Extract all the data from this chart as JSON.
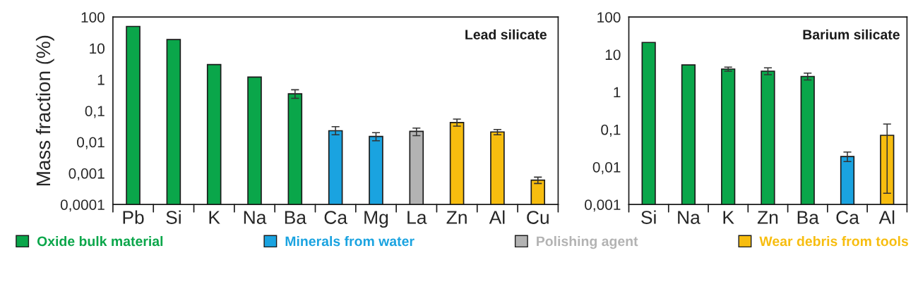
{
  "chart_data": [
    {
      "type": "bar",
      "title": "Lead silicate",
      "ylabel": "Mass fraction (%)",
      "log": "y",
      "grid": false,
      "legend": "bottom",
      "categories": [
        "Pb",
        "Si",
        "K",
        "Na",
        "Ba",
        "Ca",
        "Mg",
        "La",
        "Zn",
        "Al",
        "Cu"
      ],
      "ylim": [
        0.0001,
        100
      ],
      "yticks": [
        {
          "value": 0.0001,
          "label": "0,0001"
        },
        {
          "value": 0.001,
          "label": "0,001"
        },
        {
          "value": 0.01,
          "label": "0,01"
        },
        {
          "value": 0.1,
          "label": "0,1"
        },
        1,
        10,
        100
      ],
      "series": [
        {
          "name": "Oxide bulk material",
          "color": "#0aa64a",
          "values": [
            50,
            19,
            3,
            1.2,
            0.35,
            null,
            null,
            null,
            null,
            null,
            null
          ],
          "errors": [
            null,
            null,
            null,
            null,
            [
              0.25,
              0.47
            ],
            null,
            null,
            null,
            null,
            null,
            null
          ]
        },
        {
          "name": "Minerals from water",
          "color": "#1aa3e0",
          "values": [
            null,
            null,
            null,
            null,
            null,
            0.023,
            0.015,
            null,
            null,
            null,
            null
          ],
          "errors": [
            null,
            null,
            null,
            null,
            null,
            [
              0.017,
              0.031
            ],
            [
              0.011,
              0.02
            ],
            null,
            null,
            null,
            null
          ]
        },
        {
          "name": "Polishing agent",
          "color": "#b3b3b3",
          "values": [
            null,
            null,
            null,
            null,
            null,
            null,
            null,
            0.022,
            null,
            null,
            null
          ],
          "errors": [
            null,
            null,
            null,
            null,
            null,
            null,
            null,
            [
              0.016,
              0.028
            ],
            null,
            null,
            null
          ]
        },
        {
          "name": "Wear debris from tools",
          "color": "#f7bd0f",
          "values": [
            null,
            null,
            null,
            null,
            null,
            null,
            null,
            null,
            0.042,
            0.021,
            0.0006
          ],
          "errors": [
            null,
            null,
            null,
            null,
            null,
            null,
            null,
            null,
            [
              0.032,
              0.054
            ],
            [
              0.017,
              0.025
            ],
            [
              0.00047,
              0.00075
            ]
          ]
        }
      ]
    },
    {
      "type": "bar",
      "title": "Barium silicate",
      "log": "y",
      "grid": false,
      "categories": [
        "Si",
        "Na",
        "K",
        "Zn",
        "Ba",
        "Ca",
        "Al"
      ],
      "ylim": [
        0.001,
        100
      ],
      "yticks": [
        {
          "value": 0.001,
          "label": "0,001"
        },
        {
          "value": 0.01,
          "label": "0,01"
        },
        {
          "value": 0.1,
          "label": "0,1"
        },
        1,
        10,
        100
      ],
      "series": [
        {
          "color": "#0aa64a",
          "values": [
            21,
            5.3,
            4.1,
            3.6,
            2.6,
            null,
            null
          ],
          "errors": [
            null,
            null,
            [
              3.6,
              4.6
            ],
            [
              2.9,
              4.4
            ],
            [
              2.1,
              3.2
            ],
            null,
            null
          ]
        },
        {
          "color": "#1aa3e0",
          "values": [
            null,
            null,
            null,
            null,
            null,
            0.019,
            null
          ],
          "errors": [
            null,
            null,
            null,
            null,
            null,
            [
              0.014,
              0.025
            ],
            null
          ]
        },
        {
          "color": "#f7bd0f",
          "values": [
            null,
            null,
            null,
            null,
            null,
            null,
            0.07
          ],
          "errors": [
            null,
            null,
            null,
            null,
            null,
            null,
            [
              0.002,
              0.14
            ]
          ]
        }
      ]
    }
  ]
}
